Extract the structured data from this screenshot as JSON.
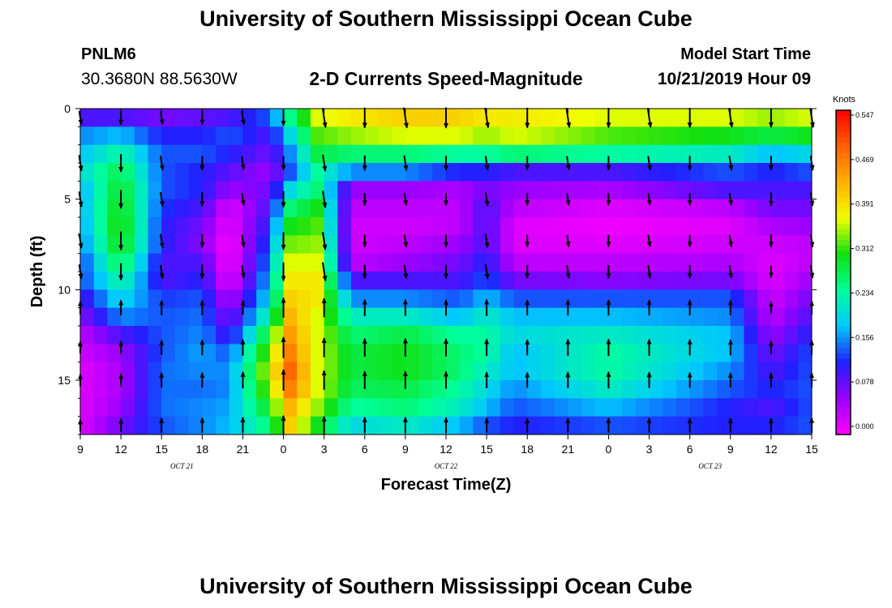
{
  "header": {
    "title": "University of Southern Mississippi Ocean Cube",
    "station_id": "PNLM6",
    "station_coords": "30.3680N 88.5630W",
    "chart_title": "2-D Currents Speed-Magnitude",
    "start_label": "Model Start Time",
    "start_value": "10/21/2019 Hour 09"
  },
  "footer": {
    "title": "University of Southern Mississippi Ocean Cube"
  },
  "chart_data": {
    "type": "heatmap",
    "title": "2-D Currents Speed-Magnitude",
    "xlabel": "Forecast Time(Z)",
    "ylabel": "Depth (ft)",
    "x_tick_labels": [
      "9",
      "12",
      "15",
      "18",
      "21",
      "0",
      "3",
      "6",
      "9",
      "12",
      "15",
      "18",
      "21",
      "0",
      "3",
      "6",
      "9",
      "12",
      "15"
    ],
    "x_hours": [
      0,
      3,
      6,
      9,
      12,
      15,
      18,
      21,
      24,
      27,
      30,
      33,
      36,
      39,
      42,
      45,
      48,
      51,
      54
    ],
    "date_labels": [
      {
        "label": "OCT 21",
        "hour": 7.5
      },
      {
        "label": "OCT 22",
        "hour": 27
      },
      {
        "label": "OCT 23",
        "hour": 46.5
      }
    ],
    "y_ticks": [
      0,
      5,
      10,
      15
    ],
    "ylim": [
      0,
      18
    ],
    "xlim": [
      0,
      54
    ],
    "y_inverted": true,
    "colorbar": {
      "label": "Knots",
      "tick_labels": [
        "0.547",
        "0.469",
        "0.391",
        "0.312",
        "0.234",
        "0.156",
        "0.078",
        "0.000"
      ],
      "range": [
        0.0,
        0.547
      ],
      "colors": [
        "#ff00ff",
        "#9a00ff",
        "#2020ff",
        "#00c8ff",
        "#00ff9a",
        "#10e010",
        "#f0ff00",
        "#ffb000",
        "#ff6000",
        "#ff0000"
      ]
    },
    "depth_bands": [
      0.5,
      1.5,
      2.5,
      3.5,
      4.5,
      5.5,
      6.5,
      7.5,
      8.5,
      9.5,
      10.5,
      11.5,
      12.5,
      13.5,
      14.5,
      15.5,
      16.5,
      17.5
    ],
    "arrow_hours": [
      0,
      3,
      6,
      9,
      12,
      15,
      18,
      21,
      24,
      27,
      30,
      33,
      36,
      39,
      42,
      45,
      48,
      51,
      54
    ],
    "arrow_depths": [
      0.5,
      3,
      5,
      7.3,
      9,
      11,
      13.2,
      15,
      17.5
    ],
    "speed_profiles": [
      {
        "hour": 0,
        "v": [
          0.1,
          0.16,
          0.18,
          0.2,
          0.17,
          0.17,
          0.16,
          0.15,
          0.13,
          0.13,
          0.1,
          0.07,
          0.04,
          0.03,
          0.02,
          0.02,
          0.02,
          0.02
        ]
      },
      {
        "hour": 3,
        "v": [
          0.1,
          0.18,
          0.24,
          0.28,
          0.3,
          0.31,
          0.32,
          0.31,
          0.28,
          0.24,
          0.2,
          0.16,
          0.1,
          0.06,
          0.05,
          0.05,
          0.06,
          0.08
        ]
      },
      {
        "hour": 6,
        "v": [
          0.08,
          0.12,
          0.14,
          0.14,
          0.14,
          0.13,
          0.12,
          0.12,
          0.1,
          0.1,
          0.13,
          0.14,
          0.14,
          0.14,
          0.15,
          0.15,
          0.15,
          0.14
        ]
      },
      {
        "hour": 9,
        "v": [
          0.09,
          0.12,
          0.14,
          0.12,
          0.12,
          0.1,
          0.08,
          0.07,
          0.1,
          0.12,
          0.14,
          0.15,
          0.16,
          0.17,
          0.16,
          0.15,
          0.16,
          0.16
        ]
      },
      {
        "hour": 11,
        "v": [
          0.1,
          0.14,
          0.12,
          0.09,
          0.06,
          0.02,
          0.01,
          0.0,
          0.0,
          0.01,
          0.04,
          0.07,
          0.1,
          0.14,
          0.16,
          0.16,
          0.17,
          0.18
        ]
      },
      {
        "hour": 14,
        "v": [
          0.14,
          0.1,
          0.08,
          0.06,
          0.08,
          0.1,
          0.12,
          0.14,
          0.16,
          0.18,
          0.2,
          0.24,
          0.3,
          0.34,
          0.36,
          0.34,
          0.3,
          0.26
        ]
      },
      {
        "hour": 15.5,
        "v": [
          0.25,
          0.2,
          0.16,
          0.14,
          0.2,
          0.26,
          0.3,
          0.33,
          0.36,
          0.38,
          0.4,
          0.42,
          0.44,
          0.46,
          0.48,
          0.46,
          0.42,
          0.4
        ]
      },
      {
        "hour": 17.5,
        "v": [
          0.36,
          0.32,
          0.28,
          0.24,
          0.26,
          0.3,
          0.32,
          0.34,
          0.36,
          0.38,
          0.38,
          0.36,
          0.36,
          0.36,
          0.36,
          0.36,
          0.34,
          0.3
        ]
      },
      {
        "hour": 20,
        "v": [
          0.38,
          0.34,
          0.26,
          0.16,
          0.06,
          0.04,
          0.03,
          0.03,
          0.04,
          0.1,
          0.16,
          0.22,
          0.26,
          0.28,
          0.28,
          0.27,
          0.24,
          0.2
        ]
      },
      {
        "hour": 24,
        "v": [
          0.4,
          0.36,
          0.26,
          0.16,
          0.06,
          0.04,
          0.03,
          0.04,
          0.06,
          0.1,
          0.16,
          0.22,
          0.28,
          0.3,
          0.3,
          0.28,
          0.26,
          0.22
        ]
      },
      {
        "hour": 28,
        "v": [
          0.4,
          0.36,
          0.24,
          0.12,
          0.05,
          0.04,
          0.04,
          0.06,
          0.08,
          0.1,
          0.14,
          0.18,
          0.24,
          0.26,
          0.26,
          0.24,
          0.22,
          0.18
        ]
      },
      {
        "hour": 30,
        "v": [
          0.38,
          0.34,
          0.24,
          0.12,
          0.08,
          0.1,
          0.1,
          0.1,
          0.12,
          0.14,
          0.18,
          0.22,
          0.24,
          0.24,
          0.22,
          0.2,
          0.18,
          0.14
        ]
      },
      {
        "hour": 32,
        "v": [
          0.38,
          0.36,
          0.26,
          0.1,
          0.06,
          0.04,
          0.02,
          0.02,
          0.04,
          0.08,
          0.14,
          0.18,
          0.2,
          0.18,
          0.18,
          0.16,
          0.14,
          0.12
        ]
      },
      {
        "hour": 39,
        "v": [
          0.36,
          0.32,
          0.24,
          0.1,
          0.05,
          0.02,
          0.01,
          0.02,
          0.04,
          0.07,
          0.14,
          0.18,
          0.22,
          0.24,
          0.24,
          0.22,
          0.18,
          0.14
        ]
      },
      {
        "hour": 48,
        "v": [
          0.36,
          0.3,
          0.22,
          0.14,
          0.1,
          0.04,
          0.02,
          0.03,
          0.05,
          0.08,
          0.14,
          0.16,
          0.18,
          0.18,
          0.16,
          0.14,
          0.12,
          0.12
        ]
      },
      {
        "hour": 51,
        "v": [
          0.34,
          0.28,
          0.18,
          0.12,
          0.1,
          0.08,
          0.05,
          0.03,
          0.02,
          0.02,
          0.03,
          0.04,
          0.06,
          0.08,
          0.1,
          0.12,
          0.1,
          0.12
        ]
      },
      {
        "hour": 54,
        "v": [
          0.36,
          0.3,
          0.2,
          0.14,
          0.1,
          0.08,
          0.06,
          0.04,
          0.04,
          0.06,
          0.08,
          0.1,
          0.12,
          0.14,
          0.14,
          0.14,
          0.14,
          0.14
        ]
      }
    ]
  }
}
